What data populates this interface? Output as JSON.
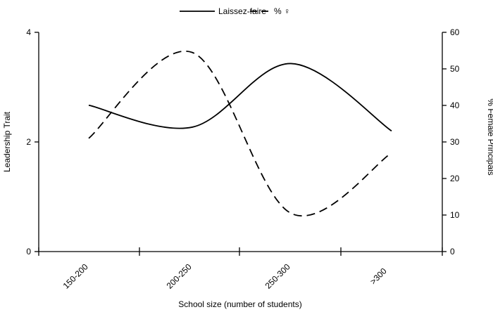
{
  "chart_data": {
    "type": "line",
    "title": "",
    "xlabel": "School size (number of students)",
    "ylabel_left": "Leadership Trait",
    "ylabel_right": "% Female Principals",
    "categories": [
      "150-200",
      "200-250",
      "250-300",
      ">300"
    ],
    "y_left": {
      "range": [
        0,
        4
      ],
      "ticks": [
        "0",
        "2",
        "4"
      ]
    },
    "y_right": {
      "range": [
        0,
        60
      ],
      "ticks": [
        "0",
        "10",
        "20",
        "30",
        "40",
        "50",
        "60"
      ]
    },
    "grid": false,
    "legend_position": "top-center",
    "series": [
      {
        "name": "Laissez-faire",
        "axis": "left",
        "style": "solid",
        "color": "#000000",
        "points": [
          {
            "x": 0.0,
            "y": 2.67
          },
          {
            "x": 1.0,
            "y": 2.27
          },
          {
            "x": 2.0,
            "y": 3.43
          },
          {
            "x": 3.0,
            "y": 2.2
          }
        ]
      },
      {
        "name": "% ♀",
        "axis": "right",
        "style": "dashed",
        "color": "#000000",
        "points": [
          {
            "x": 0.0,
            "y": 31
          },
          {
            "x": 1.0,
            "y": 54.5
          },
          {
            "x": 2.0,
            "y": 10.5
          },
          {
            "x": 3.0,
            "y": 27
          }
        ]
      }
    ]
  }
}
